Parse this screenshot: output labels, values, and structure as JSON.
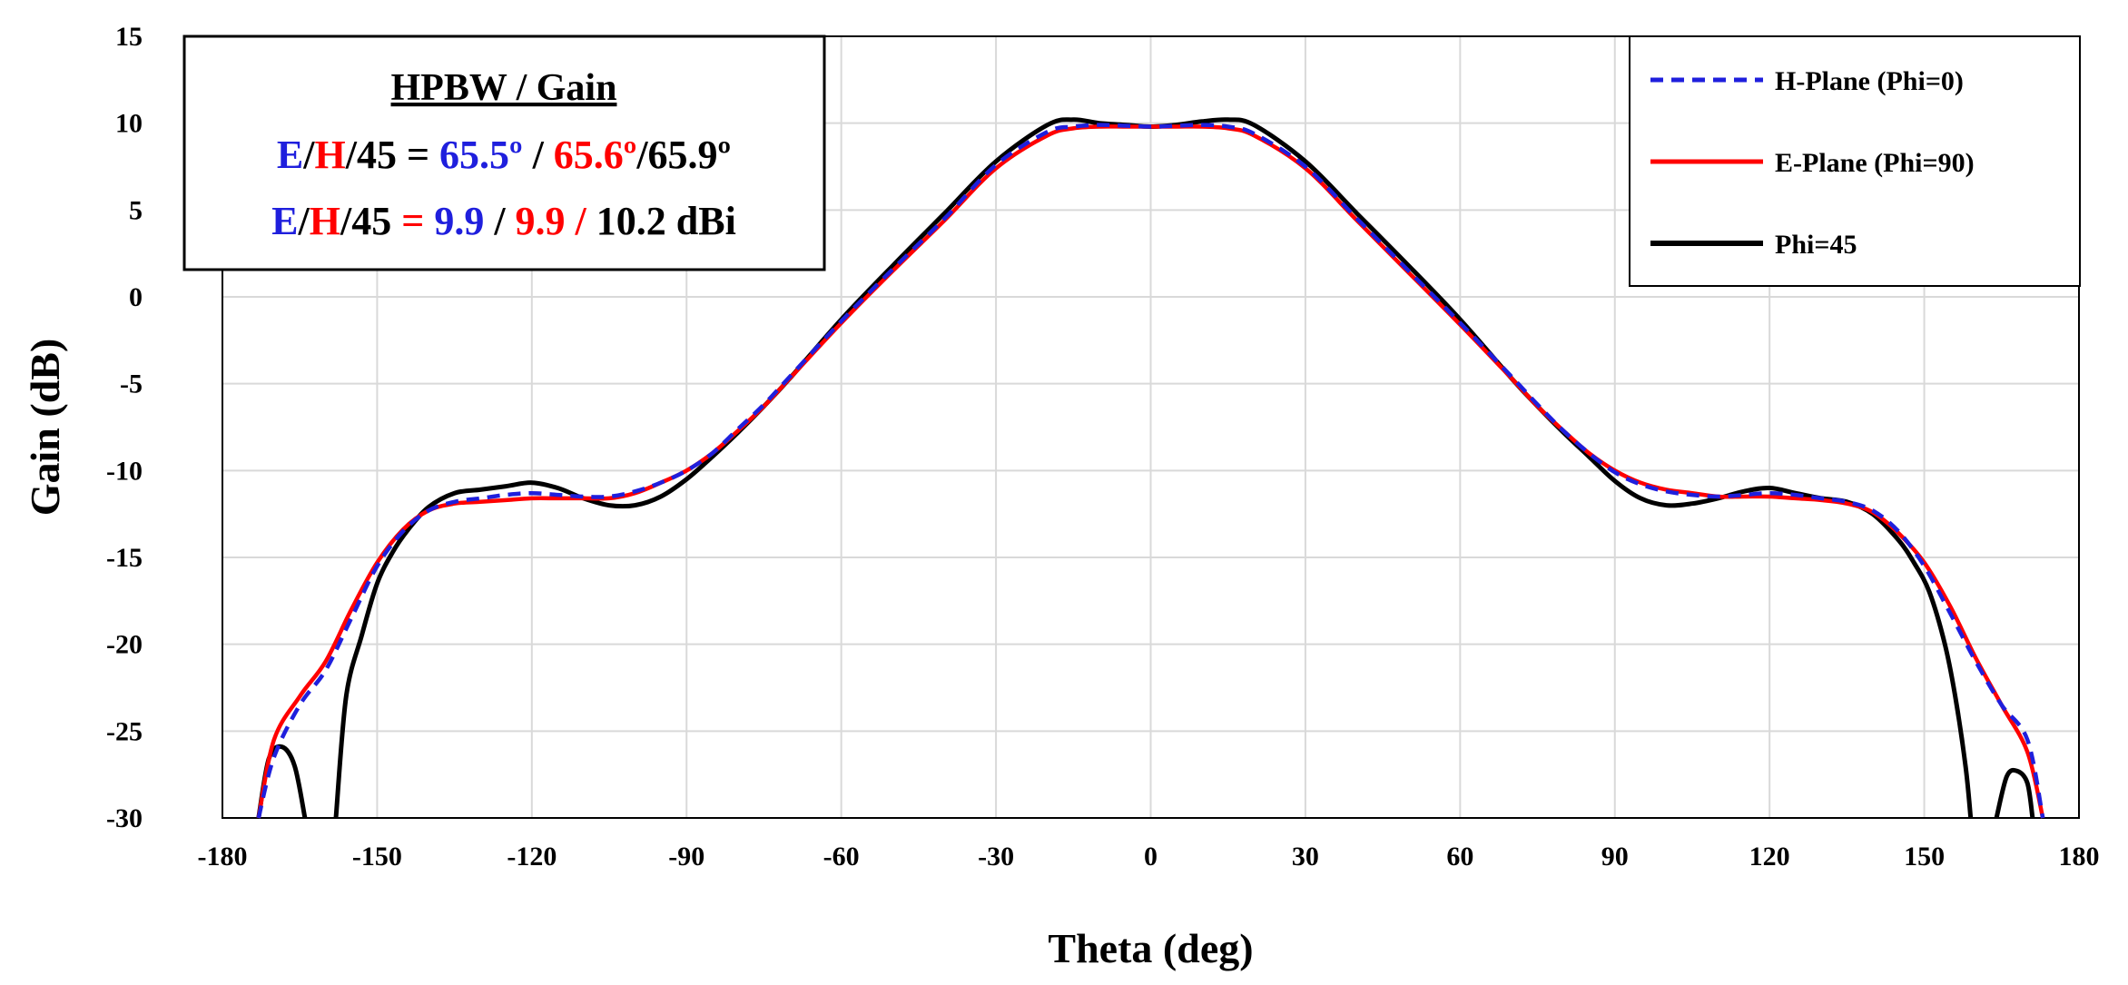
{
  "chart_data": {
    "type": "line",
    "title": "",
    "xlabel": "Theta (deg)",
    "ylabel": "Gain (dB)",
    "xlim": [
      -180,
      180
    ],
    "ylim": [
      -30,
      15
    ],
    "xticks": [
      -180,
      -150,
      -120,
      -90,
      -60,
      -30,
      0,
      30,
      60,
      90,
      120,
      150,
      180
    ],
    "yticks": [
      15,
      10,
      5,
      0,
      -5,
      -10,
      -15,
      -20,
      -25,
      -30
    ],
    "grid": true,
    "legend_position": "top-right",
    "colors": {
      "blue": "#1f1fdd",
      "red": "#ff0000",
      "black": "#000000"
    },
    "annotation": {
      "title": "HPBW / Gain",
      "line1": {
        "label_e": "E",
        "sep1": "/",
        "label_h": "H",
        "rest": "/45 = ",
        "v1": "65.5º",
        "sep2": " / ",
        "v2": "65.6º",
        "v3": "/65.9º"
      },
      "line2": {
        "label_e": "E",
        "sep1": "/",
        "label_h": "H",
        "rest": "/45 ",
        "eq": "= ",
        "v1": "9.9",
        "sep2": " / ",
        "v2": "9.9 / ",
        "v3": "10.2 dBi"
      }
    },
    "series": [
      {
        "name": "H-Plane (Phi=0)",
        "color": "#1f1fdd",
        "style": "dashed",
        "x": [
          -173,
          -170,
          -165,
          -160,
          -155,
          -150,
          -145,
          -140,
          -135,
          -130,
          -125,
          -120,
          -115,
          -110,
          -105,
          -100,
          -95,
          -90,
          -85,
          -80,
          -75,
          -70,
          -60,
          -50,
          -40,
          -30,
          -20,
          -15,
          -10,
          -5,
          0,
          5,
          10,
          15,
          20,
          30,
          40,
          50,
          60,
          70,
          75,
          80,
          85,
          90,
          95,
          100,
          105,
          110,
          115,
          120,
          125,
          130,
          135,
          140,
          145,
          150,
          155,
          160,
          165,
          170,
          173
        ],
        "y": [
          -30,
          -26.5,
          -23.5,
          -21.5,
          -18.5,
          -15.5,
          -13.5,
          -12.3,
          -11.8,
          -11.6,
          -11.4,
          -11.3,
          -11.4,
          -11.5,
          -11.5,
          -11.2,
          -10.7,
          -10.0,
          -9.0,
          -7.6,
          -6.2,
          -4.6,
          -1.4,
          1.6,
          4.5,
          7.6,
          9.5,
          9.8,
          9.9,
          9.85,
          9.8,
          9.85,
          9.9,
          9.8,
          9.4,
          7.5,
          4.5,
          1.5,
          -1.5,
          -4.6,
          -6.2,
          -7.7,
          -9.0,
          -10.1,
          -10.8,
          -11.2,
          -11.4,
          -11.5,
          -11.4,
          -11.3,
          -11.4,
          -11.6,
          -11.8,
          -12.3,
          -13.5,
          -15.5,
          -18.2,
          -21.0,
          -23.5,
          -25.5,
          -30
        ]
      },
      {
        "name": "E-Plane (Phi=90)",
        "color": "#ff0000",
        "style": "solid",
        "x": [
          -173,
          -170,
          -165,
          -160,
          -155,
          -150,
          -145,
          -140,
          -135,
          -130,
          -125,
          -120,
          -115,
          -110,
          -105,
          -100,
          -95,
          -90,
          -85,
          -80,
          -75,
          -70,
          -60,
          -50,
          -40,
          -30,
          -20,
          -15,
          -10,
          -5,
          0,
          5,
          10,
          15,
          20,
          30,
          40,
          50,
          60,
          70,
          75,
          80,
          85,
          90,
          95,
          100,
          105,
          110,
          115,
          120,
          125,
          130,
          135,
          140,
          145,
          150,
          155,
          160,
          165,
          170,
          173
        ],
        "y": [
          -30,
          -25.5,
          -23.0,
          -21.0,
          -18.0,
          -15.3,
          -13.4,
          -12.3,
          -11.9,
          -11.8,
          -11.7,
          -11.6,
          -11.6,
          -11.6,
          -11.6,
          -11.3,
          -10.7,
          -10.0,
          -9.0,
          -7.7,
          -6.3,
          -4.7,
          -1.5,
          1.5,
          4.4,
          7.4,
          9.3,
          9.7,
          9.8,
          9.8,
          9.8,
          9.8,
          9.8,
          9.7,
          9.3,
          7.4,
          4.4,
          1.4,
          -1.6,
          -4.7,
          -6.3,
          -7.7,
          -9.0,
          -10.0,
          -10.7,
          -11.1,
          -11.3,
          -11.5,
          -11.5,
          -11.5,
          -11.6,
          -11.7,
          -11.9,
          -12.4,
          -13.6,
          -15.3,
          -17.8,
          -20.8,
          -23.5,
          -26.2,
          -30
        ]
      },
      {
        "name": "Phi=45",
        "color": "#000000",
        "style": "solid",
        "segments": [
          {
            "x": [
              -173,
              -171,
              -168.5,
              -166,
              -164
            ],
            "y": [
              -30,
              -26.6,
              -25.9,
              -27.0,
              -30
            ]
          },
          {
            "x": [
              -158,
              -156,
              -153,
              -150,
              -147,
              -144,
              -140,
              -135,
              -130,
              -125,
              -120,
              -115,
              -110,
              -105,
              -100,
              -95,
              -90,
              -85,
              -80,
              -75,
              -70,
              -60,
              -50,
              -40,
              -30,
              -20,
              -15,
              -10,
              -5,
              0,
              5,
              10,
              15,
              20,
              30,
              40,
              50,
              60,
              70,
              75,
              80,
              85,
              90,
              95,
              100,
              105,
              110,
              115,
              120,
              125,
              130,
              135,
              140,
              145,
              148,
              151,
              154,
              156,
              158,
              159
            ],
            "y": [
              -30,
              -23.0,
              -19.5,
              -16.5,
              -14.7,
              -13.4,
              -12.1,
              -11.3,
              -11.1,
              -10.9,
              -10.7,
              -11.0,
              -11.6,
              -12.0,
              -12.0,
              -11.5,
              -10.5,
              -9.2,
              -7.8,
              -6.3,
              -4.7,
              -1.3,
              1.8,
              4.8,
              7.8,
              9.9,
              10.2,
              10.0,
              9.9,
              9.8,
              9.9,
              10.1,
              10.2,
              9.9,
              7.8,
              4.8,
              1.8,
              -1.3,
              -4.7,
              -6.3,
              -7.8,
              -9.2,
              -10.6,
              -11.6,
              -12.0,
              -11.9,
              -11.6,
              -11.2,
              -11.0,
              -11.3,
              -11.6,
              -11.8,
              -12.5,
              -14.0,
              -15.3,
              -17.0,
              -20.0,
              -23.0,
              -27.0,
              -30
            ]
          },
          {
            "x": [
              164,
              166,
              168,
              170,
              171
            ],
            "y": [
              -30,
              -27.6,
              -27.3,
              -28.0,
              -30
            ]
          }
        ]
      }
    ]
  }
}
